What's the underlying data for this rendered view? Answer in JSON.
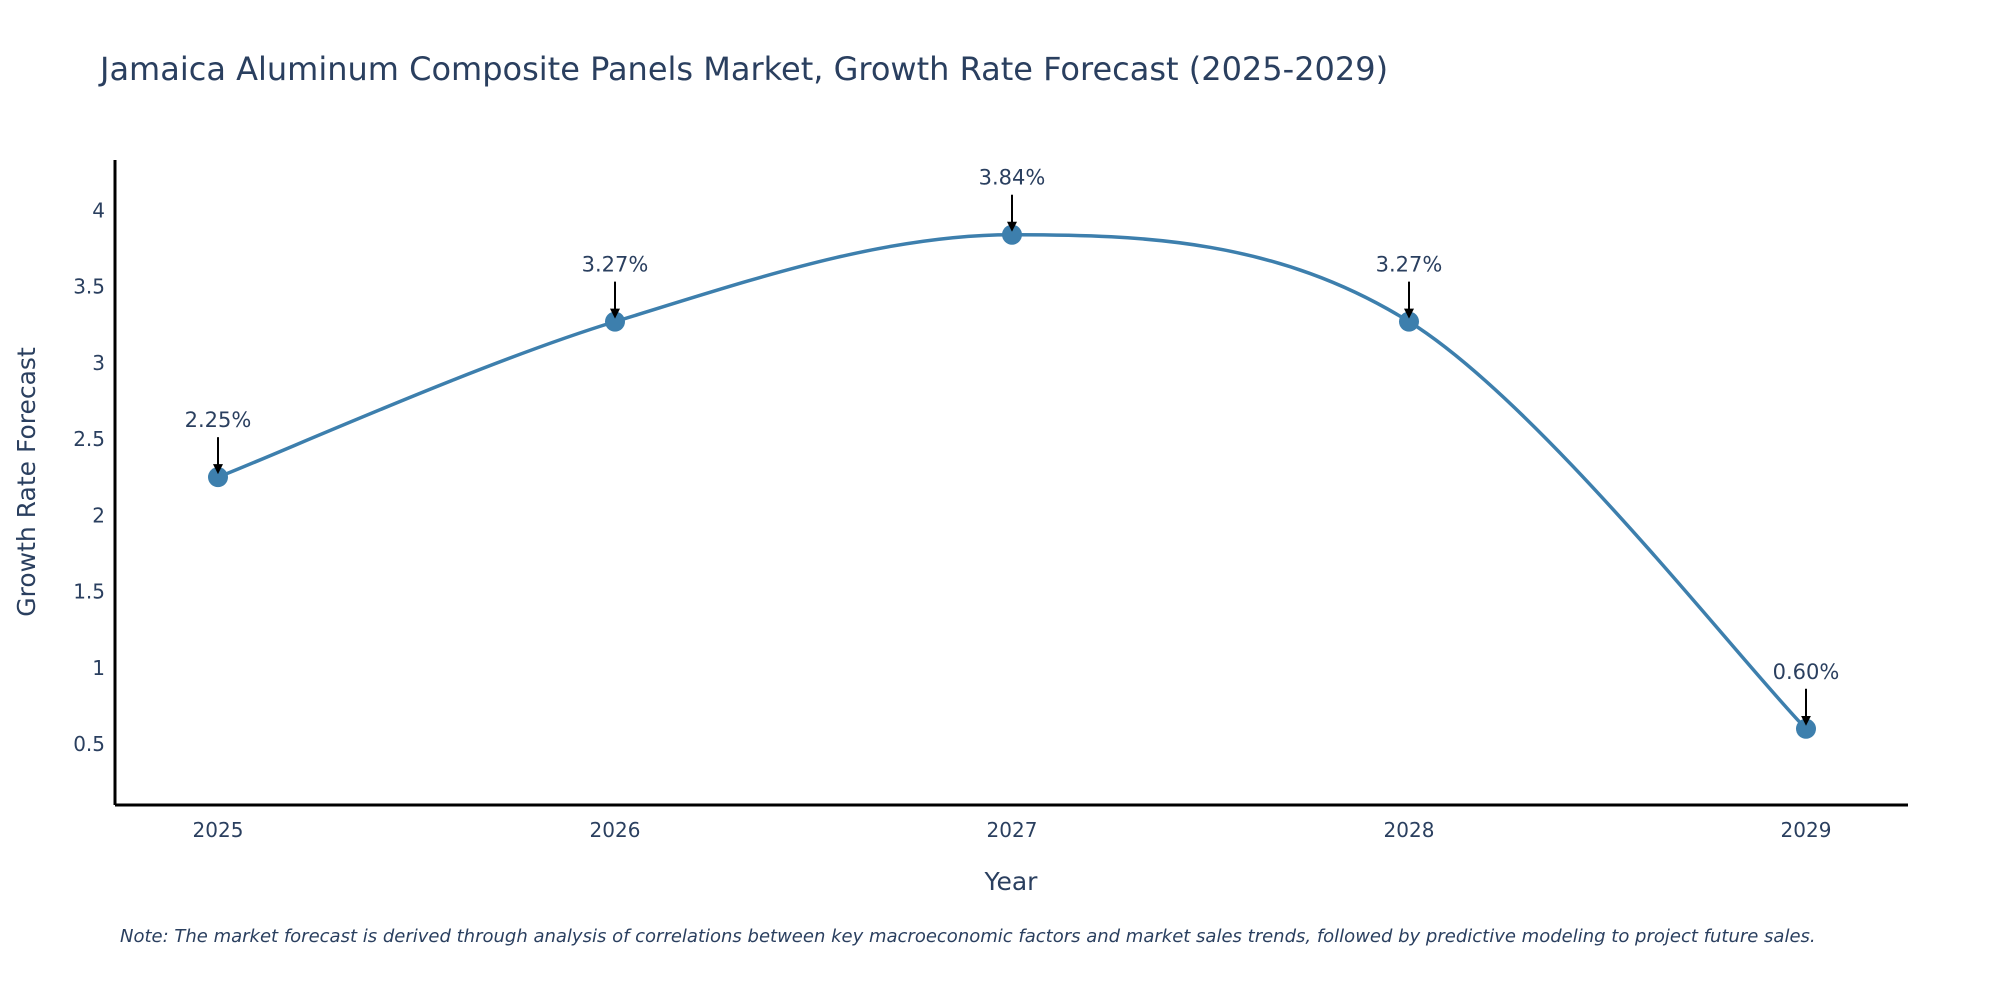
{
  "chart_data": {
    "type": "line",
    "title": "Jamaica Aluminum Composite Panels Market, Growth Rate Forecast (2025-2029)",
    "xlabel": "Year",
    "ylabel": "Growth Rate Forecast",
    "categories": [
      "2025",
      "2026",
      "2027",
      "2028",
      "2029"
    ],
    "values": [
      2.25,
      3.27,
      3.84,
      3.27,
      0.6
    ],
    "labels": [
      "2.25%",
      "3.27%",
      "3.84%",
      "3.27%",
      "0.60%"
    ],
    "y_ticks": [
      0.5,
      1,
      1.5,
      2,
      2.5,
      3,
      3.5,
      4
    ],
    "y_tick_labels": [
      "0.5",
      "1",
      "1.5",
      "2",
      "2.5",
      "3",
      "3.5",
      "4"
    ],
    "ylim": [
      0.1,
      4.33
    ],
    "grid": false,
    "line_color": "#3d7fad",
    "marker_color": "#3d7fad",
    "note": "Note: The market forecast is derived through analysis of correlations between key macroeconomic factors and market sales trends, followed by predictive modeling to project future sales."
  }
}
